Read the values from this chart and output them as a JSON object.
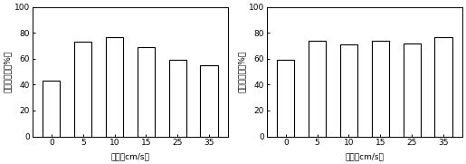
{
  "left_chart": {
    "categories": [
      "0",
      "5",
      "10",
      "15",
      "25",
      "35"
    ],
    "values": [
      43,
      73,
      77,
      69,
      59,
      55
    ],
    "ylabel": "浮藻去除率（%）",
    "xlabel": "流速（cm/s）"
  },
  "right_chart": {
    "categories": [
      "0",
      "5",
      "10",
      "15",
      "25",
      "35"
    ],
    "values": [
      59,
      74,
      71,
      74,
      72,
      77
    ],
    "ylabel": "浮藻去除率（%）",
    "xlabel": "流速（cm/s）"
  },
  "ylim": [
    0,
    100
  ],
  "yticks": [
    0,
    20,
    40,
    60,
    80,
    100
  ],
  "bar_color": "white",
  "bar_edgecolor": "black",
  "bar_linewidth": 0.8,
  "background_color": "white",
  "font_size": 6.5,
  "label_font_size": 6.5
}
